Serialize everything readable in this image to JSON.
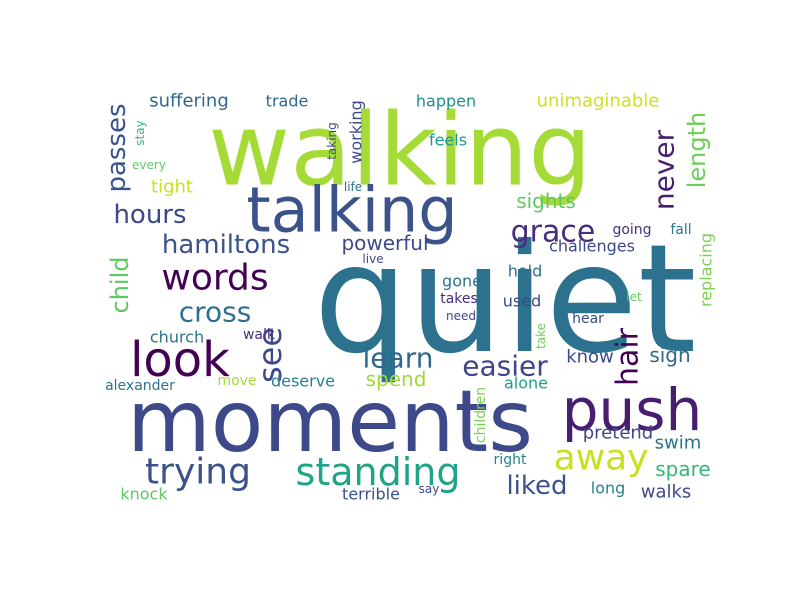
{
  "word_cloud": {
    "words": [
      {
        "text": "quiet",
        "color": "#2c728e"
      },
      {
        "text": "walking",
        "color": "#a5db36"
      },
      {
        "text": "moments",
        "color": "#3e4989"
      },
      {
        "text": "talking",
        "color": "#3b528b"
      },
      {
        "text": "push",
        "color": "#481f70"
      },
      {
        "text": "look",
        "color": "#440154"
      },
      {
        "text": "standing",
        "color": "#20a486"
      },
      {
        "text": "trying",
        "color": "#3b528b"
      },
      {
        "text": "words",
        "color": "#440154"
      },
      {
        "text": "away",
        "color": "#c8e020"
      },
      {
        "text": "see",
        "color": "#3e4989"
      },
      {
        "text": "hair",
        "color": "#440154"
      },
      {
        "text": "learn",
        "color": "#31688e"
      },
      {
        "text": "easier",
        "color": "#414487"
      },
      {
        "text": "cross",
        "color": "#2c728e"
      },
      {
        "text": "hamiltons",
        "color": "#3b528b"
      },
      {
        "text": "never",
        "color": "#481f70"
      },
      {
        "text": "grace",
        "color": "#472d7b"
      },
      {
        "text": "liked",
        "color": "#3b528b"
      },
      {
        "text": "hours",
        "color": "#3e4989"
      },
      {
        "text": "passes",
        "color": "#3b528b"
      },
      {
        "text": "length",
        "color": "#6ece58"
      },
      {
        "text": "child",
        "color": "#5ec962"
      },
      {
        "text": "powerful",
        "color": "#3e4989"
      },
      {
        "text": "sights",
        "color": "#5ec962"
      },
      {
        "text": "spend",
        "color": "#a0da39"
      },
      {
        "text": "sign",
        "color": "#31688e"
      },
      {
        "text": "spare",
        "color": "#35b779"
      },
      {
        "text": "suffering",
        "color": "#31688e"
      },
      {
        "text": "unimaginable",
        "color": "#d0e11c"
      },
      {
        "text": "walks",
        "color": "#3e4989"
      },
      {
        "text": "tight",
        "color": "#c8e020"
      },
      {
        "text": "swim",
        "color": "#2c728e"
      },
      {
        "text": "know",
        "color": "#3e4989"
      },
      {
        "text": "pretend",
        "color": "#3e4989"
      },
      {
        "text": "challenges",
        "color": "#3e4989"
      },
      {
        "text": "trade",
        "color": "#31688e"
      },
      {
        "text": "working",
        "color": "#3e4989"
      },
      {
        "text": "happen",
        "color": "#21918c"
      },
      {
        "text": "feels",
        "color": "#1f988b"
      },
      {
        "text": "knock",
        "color": "#5ec962"
      },
      {
        "text": "terrible",
        "color": "#3b528b"
      },
      {
        "text": "deserve",
        "color": "#26828e"
      },
      {
        "text": "church",
        "color": "#2c728e"
      },
      {
        "text": "alone",
        "color": "#1fa187"
      },
      {
        "text": "long",
        "color": "#26828e"
      },
      {
        "text": "replacing",
        "color": "#7ad151"
      },
      {
        "text": "used",
        "color": "#3e4989"
      },
      {
        "text": "gone",
        "color": "#2c728e"
      },
      {
        "text": "hold",
        "color": "#2c728e"
      },
      {
        "text": "fall",
        "color": "#2c728e"
      },
      {
        "text": "going",
        "color": "#46337e"
      },
      {
        "text": "walk",
        "color": "#46337e"
      },
      {
        "text": "move",
        "color": "#a5db36"
      },
      {
        "text": "alexander",
        "color": "#2c728e"
      },
      {
        "text": "children",
        "color": "#7ad151"
      },
      {
        "text": "right",
        "color": "#26828e"
      },
      {
        "text": "say",
        "color": "#3e4989"
      },
      {
        "text": "hear",
        "color": "#3e4989"
      },
      {
        "text": "take",
        "color": "#6ece58"
      },
      {
        "text": "let",
        "color": "#5ec962"
      },
      {
        "text": "takes",
        "color": "#472d7b"
      },
      {
        "text": "need",
        "color": "#3e4989"
      },
      {
        "text": "live",
        "color": "#3e4989"
      },
      {
        "text": "life",
        "color": "#2c728e"
      },
      {
        "text": "taking",
        "color": "#3e4989"
      },
      {
        "text": "every",
        "color": "#5ec962"
      },
      {
        "text": "stay",
        "color": "#35b779"
      }
    ]
  }
}
